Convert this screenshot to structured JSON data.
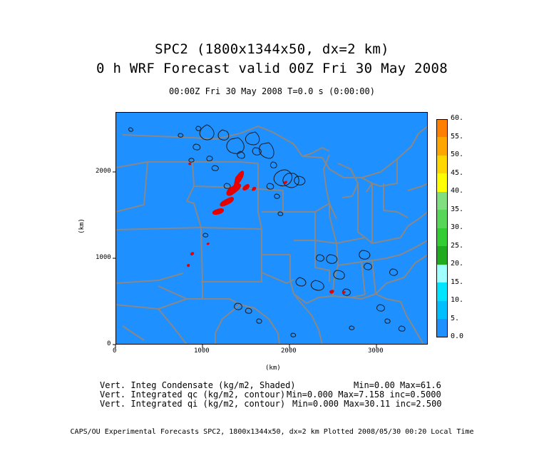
{
  "header": {
    "title_line1": "SPC2 (1800x1344x50, dx=2 km)",
    "title_line2": "0 h  WRF Forecast valid 00Z Fri 30 May 2008",
    "time_info": "00:00Z Fri 30 May 2008     T=0.0 s (0:00:00)"
  },
  "axes": {
    "xlabel": "(km)",
    "ylabel": "(km)",
    "x_ticks": [
      "0",
      "1000",
      "2000",
      "3000"
    ],
    "y_ticks": [
      "0",
      "1000",
      "2000"
    ]
  },
  "colorbar": {
    "labels": [
      "0.0",
      "5.",
      "10.",
      "15.",
      "20.",
      "25.",
      "30.",
      "35.",
      "40.",
      "45.",
      "50.",
      "55.",
      "60."
    ],
    "colors": [
      "#1e90ff",
      "#00bfff",
      "#00e5ff",
      "#a0ffff",
      "#1faa1f",
      "#32cd32",
      "#57d657",
      "#80e080",
      "#ffff00",
      "#ffd700",
      "#ffa500",
      "#ff7f00"
    ]
  },
  "map": {
    "background_color": "#1e90ff",
    "border_color": "#888888",
    "contour_color": "#1a1a1a",
    "high_value_color": "#e60000"
  },
  "annotations": {
    "line1_left": "Vert. Integ Condensate (kg/m2, Shaded)",
    "line1_right": "Min=0.00 Max=61.6",
    "line2_left": "Vert. Integrated qc (kg/m2, contour)",
    "line2_right": "Min=0.000 Max=7.158 inc=0.5000",
    "line3_left": "Vert. Integrated qi (kg/m2, contour)",
    "line3_right": "Min=0.000 Max=30.11 inc=2.500"
  },
  "footer": {
    "text": "CAPS/OU Experimental Forecasts  SPC2, 1800x1344x50, dx=2 km  Plotted 2008/05/30 00:20 Local Time"
  }
}
